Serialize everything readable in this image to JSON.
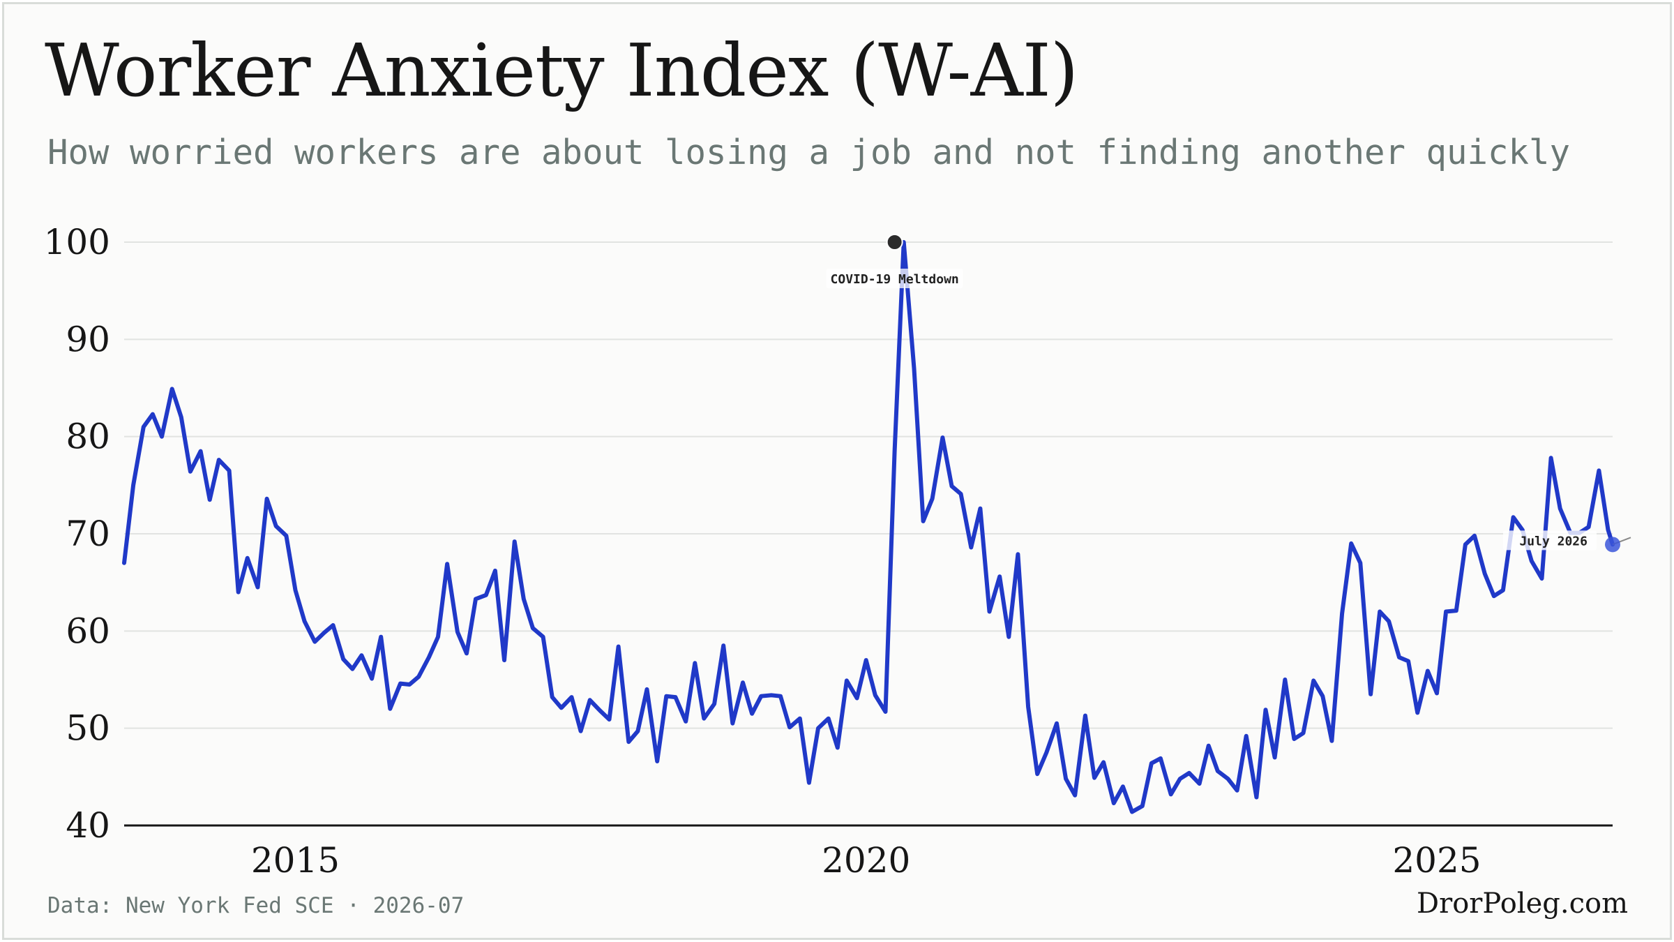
{
  "title": "Worker Anxiety Index (W-AI)",
  "subtitle": "How worried workers are about losing a job and not finding another quickly",
  "source": "Data: New York Fed SCE · 2026-07",
  "brand": "DrorPoleg.com",
  "colors": {
    "line": "#2039c8",
    "grid": "#e1e3e1",
    "axis": "#161616",
    "peak_marker": "#2b2b2b",
    "end_marker": "#3b56d9"
  },
  "chart_data": {
    "type": "line",
    "title": "Worker Anxiety Index (W-AI)",
    "xlabel": "",
    "ylabel": "",
    "ylim": [
      40,
      100
    ],
    "xlim": [
      2013.5,
      2026.54
    ],
    "yticks": [
      "40",
      "50",
      "60",
      "70",
      "80",
      "90",
      "100"
    ],
    "xticks": [
      {
        "label": "2015",
        "x": 2015
      },
      {
        "label": "2020",
        "x": 2020
      },
      {
        "label": "2025",
        "x": 2025
      }
    ],
    "grid": true,
    "legend": "none",
    "annotations": [
      {
        "text": "COVID-19 Meltdown",
        "x": 2020.25,
        "y": 100
      },
      {
        "text": "July 2026",
        "x": 2026.54,
        "y": 68.9
      }
    ],
    "series": [
      {
        "x": [
          2013.5,
          2013.58,
          2013.67,
          2013.75,
          2013.83,
          2013.92,
          2014.0,
          2014.08,
          2014.17,
          2014.25,
          2014.33,
          2014.42,
          2014.5,
          2014.58,
          2014.67,
          2014.75,
          2014.83,
          2014.92,
          2015.0,
          2015.08,
          2015.17,
          2015.25,
          2015.33,
          2015.42,
          2015.5,
          2015.58,
          2015.67,
          2015.75,
          2015.83,
          2015.92,
          2016.0,
          2016.08,
          2016.17,
          2016.25,
          2016.33,
          2016.42,
          2016.5,
          2016.58,
          2016.67,
          2016.75,
          2016.83,
          2016.92,
          2017.0,
          2017.08,
          2017.17,
          2017.25,
          2017.33,
          2017.42,
          2017.5,
          2017.58,
          2017.67,
          2017.75,
          2017.83,
          2017.92,
          2018.0,
          2018.08,
          2018.17,
          2018.25,
          2018.33,
          2018.42,
          2018.5,
          2018.58,
          2018.67,
          2018.75,
          2018.83,
          2018.92,
          2019.0,
          2019.08,
          2019.17,
          2019.25,
          2019.33,
          2019.42,
          2019.5,
          2019.58,
          2019.67,
          2019.75,
          2019.83,
          2019.92,
          2020.0,
          2020.08,
          2020.17,
          2020.25,
          2020.33,
          2020.42,
          2020.5,
          2020.58,
          2020.67,
          2020.75,
          2020.83,
          2020.92,
          2021.0,
          2021.08,
          2021.17,
          2021.25,
          2021.33,
          2021.42,
          2021.5,
          2021.58,
          2021.67,
          2021.75,
          2021.83,
          2021.92,
          2022.0,
          2022.08,
          2022.17,
          2022.25,
          2022.33,
          2022.42,
          2022.5,
          2022.58,
          2022.67,
          2022.75,
          2022.83,
          2022.92,
          2023.0,
          2023.08,
          2023.17,
          2023.25,
          2023.33,
          2023.42,
          2023.5,
          2023.58,
          2023.67,
          2023.75,
          2023.83,
          2023.92,
          2024.0,
          2024.08,
          2024.17,
          2024.25,
          2024.33,
          2024.42,
          2024.5,
          2024.58,
          2024.67,
          2024.75,
          2024.83,
          2024.92,
          2025.0,
          2025.08,
          2025.17,
          2025.25,
          2025.33,
          2025.42,
          2025.5,
          2025.58,
          2025.67,
          2025.75,
          2025.83,
          2025.92,
          2026.0,
          2026.08,
          2026.17,
          2026.25,
          2026.33,
          2026.42,
          2026.5,
          2026.54
        ],
        "values": [
          67,
          75,
          81,
          82.3,
          80,
          84.9,
          82,
          76.4,
          78.5,
          73.5,
          77.6,
          76.5,
          64,
          67.5,
          64.5,
          73.6,
          70.8,
          69.8,
          64.2,
          61,
          58.9,
          59.8,
          60.6,
          57.1,
          56.1,
          57.5,
          55.1,
          59.4,
          52,
          54.6,
          54.5,
          55.3,
          57.3,
          59.4,
          66.9,
          59.9,
          57.7,
          63.3,
          63.7,
          66.2,
          57,
          69.2,
          63.3,
          60.3,
          59.4,
          53.2,
          52.1,
          53.2,
          49.7,
          52.9,
          51.8,
          50.9,
          58.4,
          48.6,
          49.7,
          54,
          46.6,
          53.3,
          53.2,
          50.7,
          56.7,
          51,
          52.5,
          58.5,
          50.5,
          54.7,
          51.5,
          53.3,
          53.4,
          53.3,
          50.1,
          51,
          44.4,
          50,
          51,
          48,
          54.9,
          53.1,
          57,
          53.4,
          51.7,
          78.5,
          100,
          87,
          71.3,
          73.6,
          79.9,
          74.9,
          74.1,
          68.6,
          72.6,
          62,
          65.6,
          59.4,
          67.9,
          52.2,
          45.3,
          47.5,
          50.5,
          44.8,
          43.1,
          51.3,
          44.9,
          46.5,
          42.3,
          44,
          41.4,
          42,
          46.4,
          46.9,
          43.2,
          44.8,
          45.4,
          44.3,
          48.2,
          45.6,
          44.8,
          43.6,
          49.2,
          42.9,
          51.9,
          47,
          55,
          48.9,
          49.5,
          54.9,
          53.3,
          48.7,
          61.8,
          69,
          67,
          53.5,
          62,
          61,
          57.3,
          56.9,
          51.6,
          55.9,
          53.6,
          62,
          62.1,
          68.9,
          69.8,
          65.9,
          63.6,
          64.2,
          71.7,
          70.4,
          67.2,
          65.4,
          77.8,
          72.6,
          70.1,
          70.1,
          70.7,
          76.5,
          70.4,
          68.9
        ]
      }
    ]
  }
}
